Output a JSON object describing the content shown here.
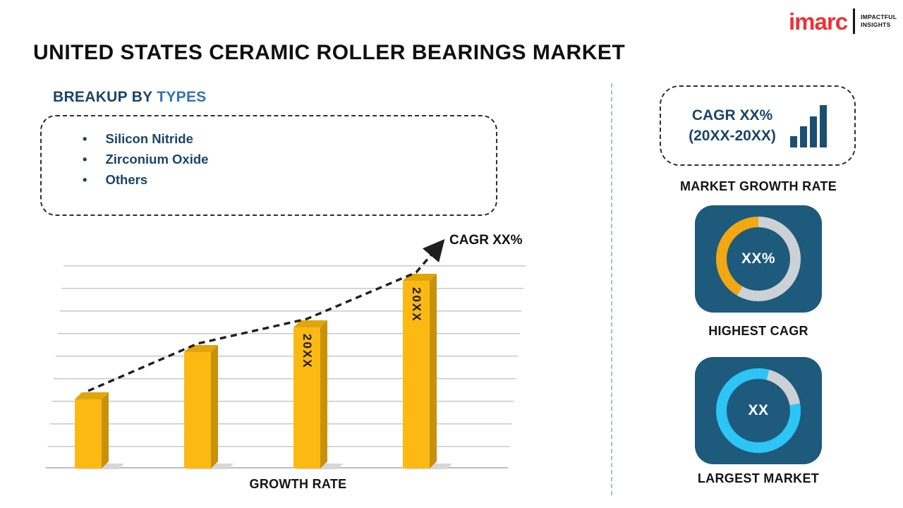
{
  "header": {
    "title": "UNITED STATES CERAMIC ROLLER BEARINGS MARKET",
    "logo": {
      "brand": "imarc",
      "tagline1": "IMPACTFUL",
      "tagline2": "INSIGHTS"
    }
  },
  "breakup": {
    "heading_prefix": "BREAKUP BY",
    "heading_highlight": "TYPES",
    "items": [
      "Silicon Nitride",
      "Zirconium Oxide",
      "Others"
    ]
  },
  "growth_box": {
    "line1": "CAGR XX%",
    "line2": "(20XX-20XX)",
    "caption": "MARKET GROWTH RATE"
  },
  "highest_cagr": {
    "value": "XX%",
    "caption": "HIGHEST CAGR"
  },
  "largest_market": {
    "value": "XX",
    "caption": "LARGEST MARKET"
  },
  "colors": {
    "accent_navy": "#1b4567",
    "accent_blue": "#2e74b5",
    "bar_gold": "#fdb913",
    "donut_orange": "#f3a712",
    "donut_cyan": "#2cc5f5",
    "ring_gray": "#ccd1d6",
    "card_bg": "#1d5a7c",
    "logo_red": "#ed3237"
  },
  "chart_data": {
    "type": "bar",
    "categories": [
      "",
      "",
      "20XX",
      "20XX"
    ],
    "values": [
      28,
      47,
      57,
      76
    ],
    "ylim": [
      0,
      80
    ],
    "xlabel": "GROWTH RATE",
    "trend_label": "CAGR XX%",
    "trend_style": "dashed-arrow",
    "bar_color": "#fdb913",
    "grid": true,
    "legend": false
  }
}
